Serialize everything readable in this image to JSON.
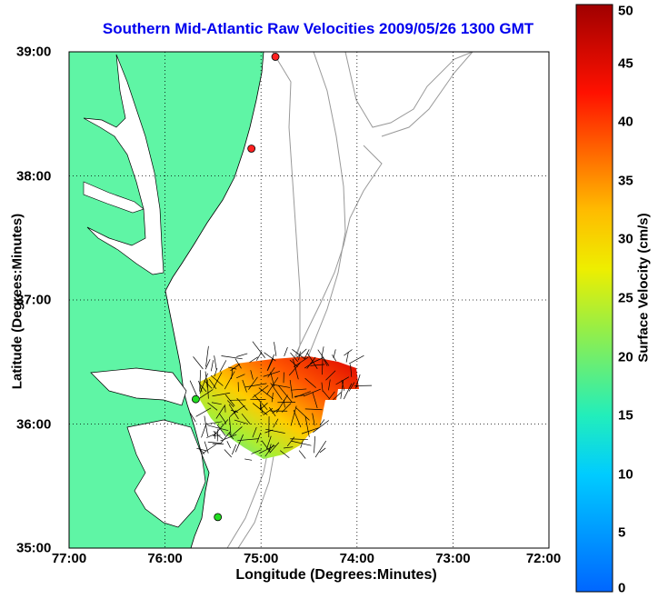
{
  "title": "Southern Mid-Atlantic Raw Velocities 2009/05/26 1300 GMT",
  "xlabel": "Longitude (Degrees:Minutes)",
  "ylabel": "Latitude (Degrees:Minutes)",
  "colorbar": {
    "label": "Surface Velocity (cm/s)",
    "min": 0,
    "max": 50,
    "ticks": [
      "0",
      "5",
      "10",
      "15",
      "20",
      "25",
      "30",
      "35",
      "40",
      "45",
      "50"
    ]
  },
  "map": {
    "x_ticks": [
      "77:00",
      "76:00",
      "75:00",
      "74:00",
      "73:00",
      "72:00"
    ],
    "y_ticks": [
      "35:00",
      "36:00",
      "37:00",
      "38:00",
      "39:00"
    ],
    "lon_range_deg_west": [
      77,
      72
    ],
    "lat_range_deg_north": [
      35,
      39
    ],
    "grid": true,
    "land_color": "#5ff5a5",
    "stations": [
      {
        "lon": -74.85,
        "lat": 38.96,
        "color": "#ff2020"
      },
      {
        "lon": -75.1,
        "lat": 38.22,
        "color": "#ff2020"
      },
      {
        "lon": -75.68,
        "lat": 36.2,
        "color": "#22dd22"
      },
      {
        "lon": -75.45,
        "lat": 35.25,
        "color": "#22dd22"
      }
    ]
  }
}
